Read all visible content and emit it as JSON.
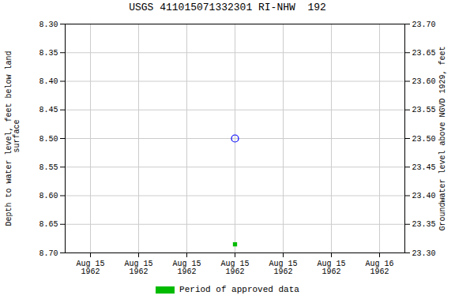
{
  "chart_data": {
    "type": "scatter",
    "title": "USGS 411015071332301 RI-NHW  192",
    "ylabel": "Depth to water level, feet below land\n surface",
    "y2label": "Groundwater level above NGVD 1929, feet",
    "categories": [
      "Aug 15\n1962",
      "Aug 15\n1962",
      "Aug 15\n1962",
      "Aug 15\n1962",
      "Aug 15\n1962",
      "Aug 15\n1962",
      "Aug 16\n1962"
    ],
    "series": [
      {
        "name": "Period of approved data",
        "color": "#00bb00",
        "marker": "square",
        "values": [
          null,
          null,
          null,
          8.685,
          null,
          null,
          null
        ]
      },
      {
        "color": "blue",
        "marker": "circle",
        "values": [
          null,
          null,
          null,
          8.5,
          null,
          null,
          null
        ]
      }
    ],
    "ylim": [
      8.7,
      8.3
    ],
    "yticks": [
      {
        "value": 8.3,
        "label": "8.30"
      },
      8.35,
      {
        "value": 8.4,
        "label": "8.40"
      },
      8.45,
      {
        "value": 8.5,
        "label": "8.50"
      },
      8.55,
      {
        "value": 8.6,
        "label": "8.60"
      },
      8.65,
      {
        "value": 8.7,
        "label": "8.70"
      }
    ],
    "y2lim": [
      23.3,
      23.7
    ],
    "y2ticks": [
      {
        "value": 23.7,
        "label": "23.70"
      },
      23.65,
      {
        "value": 23.6,
        "label": "23.60"
      },
      23.55,
      {
        "value": 23.5,
        "label": "23.50"
      },
      23.45,
      {
        "value": 23.4,
        "label": "23.40"
      },
      23.35,
      {
        "value": 23.3,
        "label": "23.30"
      }
    ],
    "grid": true,
    "legend": "bottom"
  }
}
